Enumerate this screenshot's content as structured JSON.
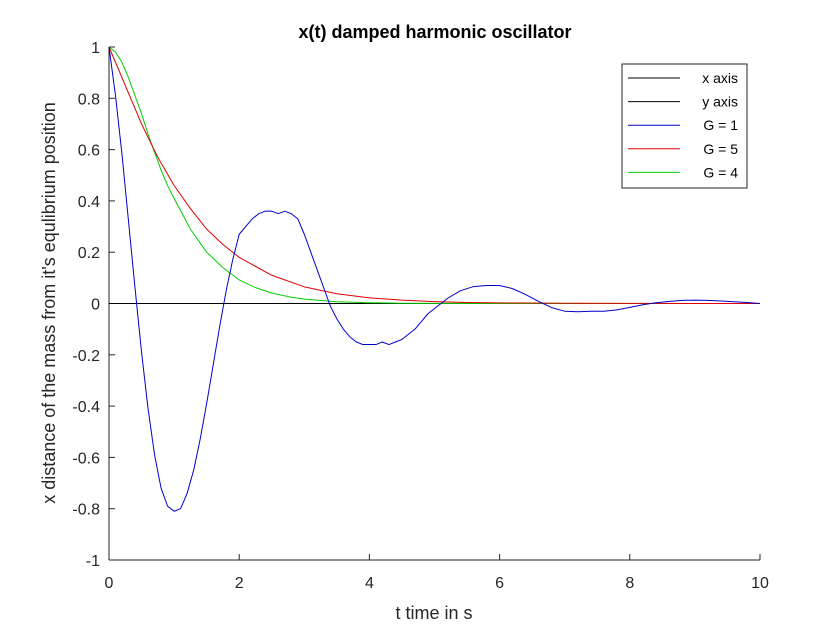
{
  "chart_data": {
    "type": "line",
    "title": "x(t) damped harmonic oscillator",
    "xlabel": "t time in s",
    "ylabel": "x distance of the mass from it's equlibrium position",
    "xlim": [
      0,
      10
    ],
    "ylim": [
      -1,
      1
    ],
    "xticks": [
      "0",
      "2",
      "4",
      "6",
      "8",
      "10"
    ],
    "yticks": [
      "1",
      "0.8",
      "0.6",
      "0.4",
      "0.2",
      "0",
      "-0.2",
      "-0.4",
      "-0.6",
      "-0.8",
      "-1"
    ],
    "grid": false,
    "legend_position": "top-right",
    "series": [
      {
        "name": "x axis",
        "color": "#000000",
        "x": [
          0,
          10
        ],
        "y": [
          0,
          0
        ]
      },
      {
        "name": "y axis",
        "color": "#000000",
        "x": [
          0,
          0
        ],
        "y": [
          0,
          0
        ]
      },
      {
        "name": "G = 1",
        "color": "#0000cc",
        "x": [
          0,
          0.1,
          0.2,
          0.3,
          0.4,
          0.5,
          0.6,
          0.7,
          0.8,
          0.9,
          1.0,
          1.1,
          1.2,
          1.3,
          1.4,
          1.5,
          1.6,
          1.7,
          1.8,
          1.9,
          2.0,
          2.1,
          2.2,
          2.3,
          2.4,
          2.5,
          2.6,
          2.7,
          2.8,
          2.9,
          3.0,
          3.1,
          3.2,
          3.3,
          3.4,
          3.5,
          3.6,
          3.7,
          3.8,
          3.9,
          4.0,
          4.1,
          4.2,
          4.3,
          4.4,
          4.5,
          4.6,
          4.7,
          4.8,
          4.9,
          5.0,
          5.2,
          5.4,
          5.6,
          5.8,
          6.0,
          6.2,
          6.4,
          6.6,
          6.8,
          7.0,
          7.2,
          7.4,
          7.6,
          7.8,
          8.0,
          8.2,
          8.4,
          8.6,
          8.8,
          9.0,
          9.2,
          9.4,
          9.6,
          9.8,
          10.0
        ],
        "y": [
          1.0,
          0.81,
          0.58,
          0.32,
          0.06,
          -0.19,
          -0.41,
          -0.59,
          -0.72,
          -0.79,
          -0.81,
          -0.8,
          -0.74,
          -0.65,
          -0.53,
          -0.39,
          -0.24,
          -0.09,
          0.05,
          0.17,
          0.27,
          0.3,
          0.33,
          0.35,
          0.36,
          0.36,
          0.35,
          0.36,
          0.35,
          0.33,
          0.27,
          0.2,
          0.13,
          0.06,
          -0.01,
          -0.06,
          -0.1,
          -0.13,
          -0.15,
          -0.16,
          -0.16,
          -0.16,
          -0.15,
          -0.16,
          -0.15,
          -0.14,
          -0.12,
          -0.1,
          -0.07,
          -0.04,
          -0.02,
          0.02,
          0.05,
          0.066,
          0.07,
          0.07,
          0.058,
          0.035,
          0.008,
          -0.016,
          -0.03,
          -0.032,
          -0.03,
          -0.03,
          -0.025,
          -0.015,
          -0.005,
          0.003,
          0.008,
          0.012,
          0.013,
          0.012,
          0.01,
          0.007,
          0.004,
          0.0
        ]
      },
      {
        "name": "G = 5",
        "color": "#dd0000",
        "x": [
          0,
          0.25,
          0.5,
          0.75,
          1.0,
          1.25,
          1.5,
          1.75,
          2.0,
          2.5,
          3.0,
          3.5,
          4.0,
          4.5,
          5.0,
          5.5,
          6.0,
          7.0,
          8.0,
          9.0,
          10.0
        ],
        "y": [
          1.0,
          0.85,
          0.7,
          0.57,
          0.46,
          0.37,
          0.29,
          0.23,
          0.18,
          0.11,
          0.065,
          0.038,
          0.022,
          0.013,
          0.0075,
          0.004,
          0.0024,
          0.0008,
          0.0003,
          0.0001,
          0.0
        ]
      },
      {
        "name": "G = 4",
        "color": "#00cc00",
        "x": [
          0,
          0.1,
          0.2,
          0.3,
          0.4,
          0.5,
          0.6,
          0.7,
          0.8,
          0.9,
          1.0,
          1.25,
          1.5,
          1.75,
          2.0,
          2.25,
          2.5,
          2.75,
          3.0,
          3.5,
          4.0,
          4.5,
          5.0,
          6.0,
          7.0,
          8.0,
          9.0,
          10.0
        ],
        "y": [
          1.0,
          0.98,
          0.94,
          0.88,
          0.81,
          0.74,
          0.66,
          0.59,
          0.52,
          0.46,
          0.41,
          0.29,
          0.2,
          0.14,
          0.092,
          0.062,
          0.041,
          0.027,
          0.017,
          0.007,
          0.003,
          0.001,
          0.0005,
          0.0001,
          0.0,
          0.0,
          0.0,
          0.0
        ]
      }
    ]
  }
}
